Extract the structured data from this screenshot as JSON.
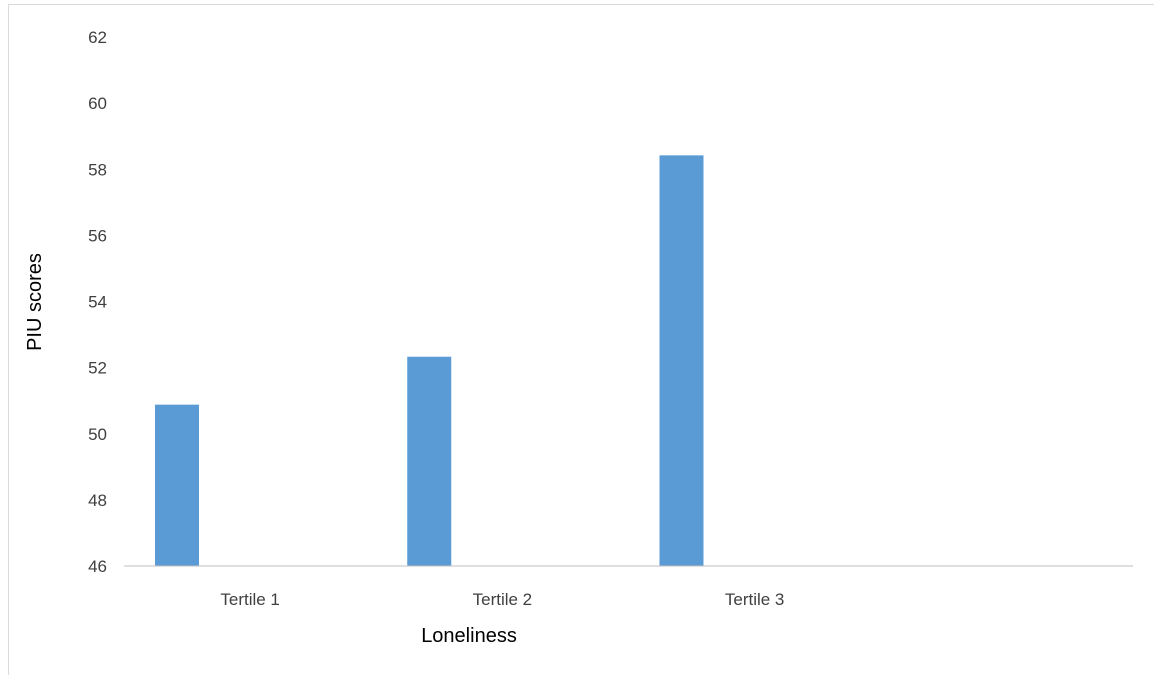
{
  "chart_data": {
    "type": "bar",
    "categories": [
      "Tertile 1",
      "Tertile 2",
      "Tertile 3",
      ""
    ],
    "series": [
      {
        "values": [
          50.88,
          52.33,
          58.42,
          null
        ],
        "color": "#5b9bd5"
      }
    ],
    "xlabel": "Loneliness",
    "ylabel": "PIU scores",
    "ylim": [
      46,
      62
    ],
    "yticks": [
      46,
      48,
      50,
      52,
      54,
      56,
      58,
      60,
      62
    ],
    "grid": false,
    "legend": "none"
  }
}
